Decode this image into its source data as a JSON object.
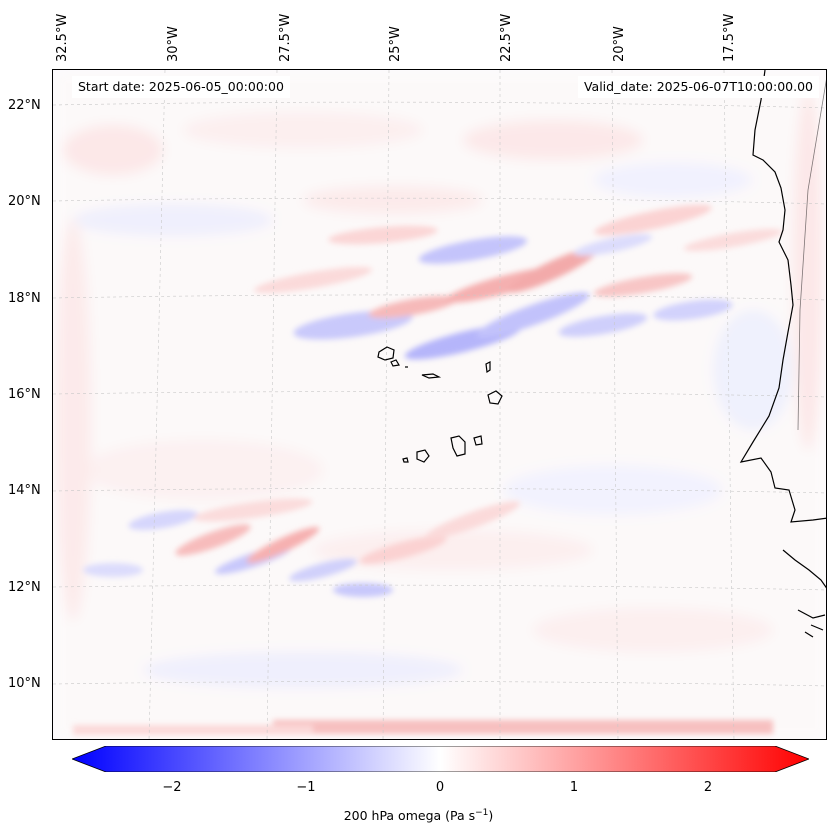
{
  "header": {
    "start_date": "Start date: 2025-06-05_00:00:00",
    "valid_date": "Valid_date: 2025-06-07T10:00:00.00"
  },
  "longitude_labels": [
    "32.5°W",
    "30°W",
    "27.5°W",
    "25°W",
    "22.5°W",
    "20°W",
    "17.5°W"
  ],
  "latitude_labels": [
    "22°N",
    "20°N",
    "18°N",
    "16°N",
    "14°N",
    "12°N",
    "10°N"
  ],
  "colorbar": {
    "label": "200 hPa omega (Pa s",
    "label_sup": "−1",
    "label_end": ")",
    "ticks": [
      "−2",
      "−1",
      "0",
      "1",
      "2"
    ],
    "range": [
      -2.75,
      2.75
    ],
    "colors": {
      "negative": "#0000ff",
      "zero": "#ffffff",
      "positive": "#ff0000"
    }
  },
  "map": {
    "field": "200 hPa omega",
    "projection_grid": "on",
    "coastline_color": "#000000"
  }
}
